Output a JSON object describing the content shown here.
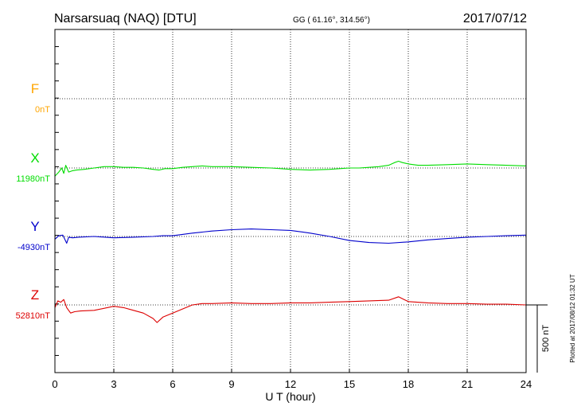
{
  "chart_data": {
    "type": "line",
    "title": "Narsarsuaq (NAQ)  [DTU]",
    "coordinates": "GG ( 61.16°, 314.56°)",
    "date": "2017/07/12",
    "xlabel": "U T (hour)",
    "xlim": [
      0,
      24
    ],
    "x_ticks": [
      "0",
      "3",
      "6",
      "9",
      "12",
      "15",
      "18",
      "21",
      "24"
    ],
    "scale_label": "500 nT",
    "footer": "Plotted at 2017/08/12 01:32 UT",
    "series": [
      {
        "name": "F",
        "baseline_label": "0nT",
        "color": "#ffa500",
        "x": [],
        "values": []
      },
      {
        "name": "X",
        "baseline_label": "11980nT",
        "color": "#00dd00",
        "x": [
          0,
          0.2,
          0.35,
          0.45,
          0.55,
          0.7,
          0.9,
          1.1,
          1.5,
          2,
          2.5,
          3,
          3.5,
          4,
          4.5,
          5,
          5.3,
          5.6,
          6,
          6.5,
          7,
          7.5,
          8,
          9,
          10,
          11,
          11.5,
          12,
          13,
          14,
          14.5,
          15,
          15.5,
          16,
          16.5,
          17,
          17.3,
          17.5,
          17.7,
          18,
          18.5,
          19,
          20,
          21,
          22,
          23,
          24
        ],
        "values": [
          -60,
          -30,
          0,
          -40,
          20,
          -30,
          -20,
          -15,
          -10,
          0,
          10,
          10,
          5,
          5,
          0,
          -10,
          -15,
          -5,
          -5,
          5,
          10,
          15,
          10,
          10,
          5,
          0,
          -5,
          -10,
          -15,
          -10,
          -5,
          0,
          0,
          5,
          10,
          20,
          40,
          50,
          40,
          30,
          20,
          20,
          25,
          30,
          25,
          20,
          15
        ]
      },
      {
        "name": "Y",
        "baseline_label": "-4930nT",
        "color": "#0000cc",
        "x": [
          0,
          0.2,
          0.4,
          0.6,
          0.7,
          0.9,
          1.2,
          2,
          3,
          4,
          5,
          5.5,
          6,
          6.5,
          7,
          8,
          9,
          10,
          11,
          12,
          13,
          14,
          15,
          16,
          17,
          18,
          19,
          20,
          21,
          22,
          23,
          24
        ],
        "values": [
          -20,
          5,
          10,
          -50,
          -5,
          -10,
          -5,
          0,
          -10,
          -5,
          0,
          5,
          5,
          15,
          25,
          40,
          50,
          55,
          50,
          45,
          25,
          0,
          -30,
          -45,
          -50,
          -40,
          -25,
          -15,
          -5,
          0,
          5,
          10
        ]
      },
      {
        "name": "Z",
        "baseline_label": "52810nT",
        "color": "#dd0000",
        "x": [
          0,
          0.15,
          0.3,
          0.45,
          0.6,
          0.8,
          1,
          1.3,
          2,
          3,
          3.5,
          4,
          4.5,
          5,
          5.2,
          5.5,
          6,
          6.5,
          7,
          7.5,
          8,
          9,
          10,
          11,
          12,
          13,
          14,
          15,
          16,
          17,
          17.5,
          18,
          19,
          20,
          21,
          22,
          23,
          24
        ],
        "values": [
          -20,
          30,
          20,
          40,
          -20,
          -60,
          -50,
          -45,
          -40,
          -10,
          -20,
          -40,
          -60,
          -100,
          -130,
          -90,
          -60,
          -30,
          0,
          10,
          10,
          15,
          10,
          10,
          15,
          15,
          20,
          25,
          30,
          35,
          60,
          25,
          15,
          10,
          10,
          5,
          5,
          0
        ]
      }
    ]
  }
}
